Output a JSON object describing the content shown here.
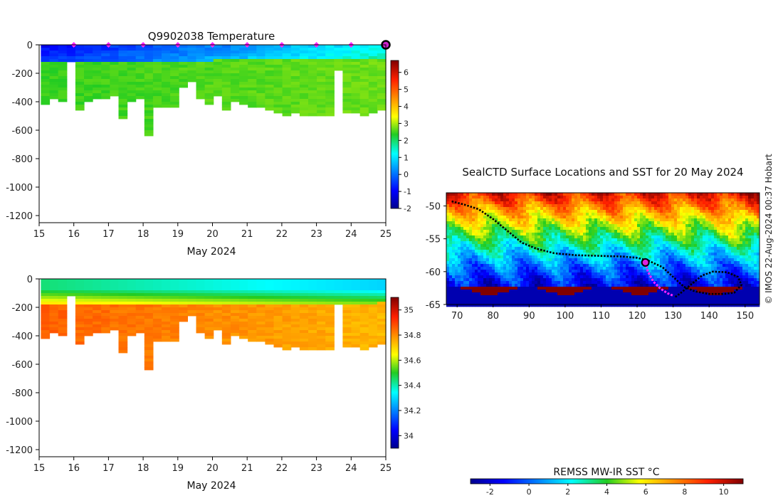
{
  "page": {
    "copyright": "© IMOS 22-Aug-2024 00:37 Hobart"
  },
  "chart_data": [
    {
      "type": "heatmap",
      "title": "Q9902038  Temperature",
      "xlabel": "May 2024",
      "ylabel": "",
      "xlim": [
        15,
        25
      ],
      "ylim": [
        -1250,
        0
      ],
      "x_ticks": [
        15,
        16,
        17,
        18,
        19,
        20,
        21,
        22,
        23,
        24,
        25
      ],
      "y_ticks": [
        0,
        -200,
        -400,
        -600,
        -800,
        -1000,
        -1200
      ],
      "colorbar": {
        "min": -2,
        "max": 6.7,
        "ticks": [
          6,
          5,
          4,
          3,
          2,
          1,
          0,
          -1,
          -2
        ]
      },
      "surface_marks": [
        16,
        17,
        18,
        19,
        20,
        21,
        22,
        23,
        24
      ],
      "current_marker_day": 25
    },
    {
      "type": "heatmap",
      "title": "",
      "xlabel": "May 2024",
      "ylabel": "",
      "xlim": [
        15,
        25
      ],
      "ylim": [
        -1250,
        0
      ],
      "x_ticks": [
        15,
        16,
        17,
        18,
        19,
        20,
        21,
        22,
        23,
        24,
        25
      ],
      "y_ticks": [
        0,
        -200,
        -400,
        -600,
        -800,
        -1000,
        -1200
      ],
      "colorbar": {
        "min": 33.9,
        "max": 35.1,
        "ticks": [
          35,
          34.8,
          34.6,
          34.4,
          34.2,
          34
        ]
      }
    },
    {
      "type": "heatmap",
      "title": "SealCTD Surface Locations and SST for 20 May 2024",
      "xlabel": "",
      "ylabel": "",
      "xlim": [
        67,
        154
      ],
      "ylim": [
        -65,
        -48
      ],
      "x_ticks": [
        70,
        80,
        90,
        100,
        110,
        120,
        130,
        140,
        150
      ],
      "y_ticks": [
        -50,
        -55,
        -60,
        -65
      ],
      "track_black": [
        [
          68.5,
          -49.3
        ],
        [
          72,
          -49.8
        ],
        [
          76,
          -50.5
        ],
        [
          80,
          -52
        ],
        [
          84,
          -53.8
        ],
        [
          88,
          -55.6
        ],
        [
          92,
          -56.5
        ],
        [
          97,
          -57.2
        ],
        [
          103,
          -57.5
        ],
        [
          110,
          -57.6
        ],
        [
          116,
          -57.7
        ],
        [
          120,
          -57.9
        ],
        [
          123,
          -58.3
        ],
        [
          127,
          -59.3
        ],
        [
          130,
          -60.8
        ],
        [
          133,
          -62.3
        ],
        [
          136,
          -63
        ],
        [
          140,
          -63.4
        ],
        [
          144,
          -63.4
        ],
        [
          147,
          -63.2
        ],
        [
          149,
          -62
        ],
        [
          148,
          -60.8
        ],
        [
          145,
          -60.1
        ],
        [
          141,
          -60
        ],
        [
          138,
          -60.6
        ],
        [
          136,
          -61.5
        ],
        [
          134,
          -62.4
        ],
        [
          132,
          -63.3
        ],
        [
          130.5,
          -63.9
        ]
      ],
      "track_recent": [
        [
          122.3,
          -58.6
        ],
        [
          123,
          -60
        ],
        [
          124.5,
          -61.5
        ],
        [
          126.5,
          -62.6
        ],
        [
          128.5,
          -63.3
        ],
        [
          130.2,
          -63.7
        ]
      ],
      "current_position": [
        122.3,
        -58.6
      ],
      "colorbar": {
        "label": "REMSS MW-IR SST °C",
        "min": -3,
        "max": 11,
        "ticks": [
          -2,
          0,
          2,
          4,
          6,
          8,
          10
        ]
      }
    }
  ]
}
